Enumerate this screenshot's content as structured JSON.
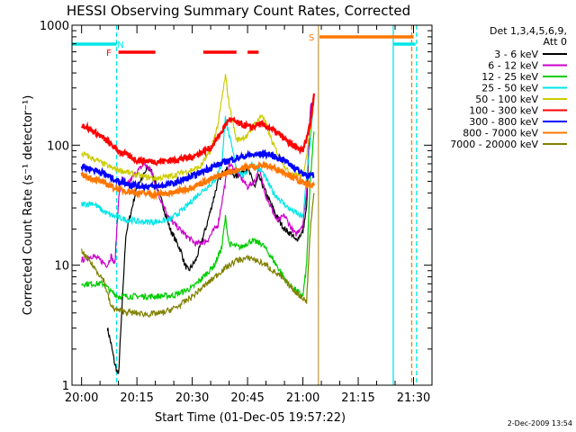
{
  "chart_data": {
    "type": "line",
    "title": "HESSI Observing Summary Count Rates, Corrected",
    "xlabel": "Start Time (01-Dec-05 19:57:22)",
    "ylabel": "Corrected Count Rate (s⁻¹ detector⁻¹)",
    "yscale": "log",
    "ylim": [
      1,
      1000
    ],
    "xlim": [
      "19:57:22",
      "21:35:00"
    ],
    "x_unit": "minutes",
    "x_tick_labels": [
      "20:00",
      "20:15",
      "20:30",
      "20:45",
      "21:00",
      "21:15",
      "21:30"
    ],
    "x_tick_values": [
      0,
      15,
      30,
      45,
      60,
      75,
      90
    ],
    "y_tick_labels": [
      "1",
      "10",
      "100",
      "1000"
    ],
    "y_tick_values": [
      1,
      10,
      100,
      1000
    ],
    "legend_title": [
      "Det 1,3,4,5,6,9,",
      "Att 0"
    ],
    "legend_position": "right, outside plot",
    "footer_date": "2-Dec-2009 13:54",
    "series": [
      {
        "name": "3 - 6 keV",
        "color": "#000000",
        "x": [
          7,
          8,
          9,
          10,
          12,
          15,
          18,
          19,
          21,
          24,
          27,
          28,
          29,
          31,
          34,
          37,
          39,
          40,
          42,
          45,
          47,
          48,
          50,
          53,
          55,
          57,
          58,
          60,
          61,
          62,
          63
        ],
        "y": [
          3,
          2.2,
          1.5,
          1.2,
          18,
          45,
          65,
          60,
          40,
          20,
          13,
          10,
          9,
          11,
          22,
          50,
          65,
          60,
          55,
          65,
          45,
          55,
          40,
          25,
          20,
          18,
          16,
          19,
          30,
          180,
          260
        ]
      },
      {
        "name": "6 - 12 keV",
        "color": "#cc00cc",
        "x": [
          0,
          3,
          5,
          7,
          8,
          9,
          10,
          11,
          12,
          14,
          17,
          19,
          21,
          24,
          28,
          31,
          34,
          37,
          39,
          40,
          42,
          45,
          47,
          48,
          50,
          53,
          55,
          57,
          58,
          60,
          61,
          62,
          63
        ],
        "y": [
          11,
          12,
          11,
          10,
          12,
          10,
          35,
          55,
          45,
          55,
          70,
          60,
          38,
          24,
          18,
          15,
          16,
          22,
          50,
          70,
          60,
          45,
          50,
          65,
          38,
          23,
          26,
          20,
          18,
          22,
          40,
          200,
          250
        ]
      },
      {
        "name": "12 - 25 keV",
        "color": "#00cc00",
        "x": [
          0,
          4,
          6,
          8,
          10,
          15,
          20,
          25,
          30,
          33,
          36,
          38,
          39,
          40,
          43,
          46,
          49,
          52,
          56,
          60,
          61,
          62,
          63
        ],
        "y": [
          7,
          7,
          7,
          6,
          5.5,
          5.5,
          5.5,
          5.6,
          6.5,
          8,
          10,
          14,
          25,
          15,
          14,
          16,
          15,
          11,
          7,
          5.5,
          10,
          50,
          130
        ]
      },
      {
        "name": "25 - 50 keV",
        "color": "#00e6e6",
        "x": [
          0,
          3,
          6,
          8,
          12,
          16,
          20,
          24,
          28,
          32,
          36,
          38,
          39,
          40,
          42,
          44,
          46,
          49,
          52,
          56,
          60,
          62,
          63
        ],
        "y": [
          32,
          33,
          28,
          26,
          24,
          23,
          23,
          24,
          30,
          40,
          50,
          70,
          170,
          120,
          65,
          55,
          70,
          60,
          40,
          30,
          25,
          110,
          230
        ]
      },
      {
        "name": "50 - 100 keV",
        "color": "#cccc00",
        "x": [
          0,
          4,
          8,
          12,
          16,
          20,
          24,
          28,
          32,
          35,
          37,
          39,
          40,
          42,
          45,
          47,
          49,
          52,
          56,
          60,
          62,
          63
        ],
        "y": [
          85,
          75,
          65,
          60,
          55,
          53,
          55,
          60,
          65,
          90,
          150,
          380,
          220,
          110,
          120,
          150,
          180,
          100,
          60,
          55,
          130,
          240
        ]
      },
      {
        "name": "100 - 300 keV",
        "color": "#ff0000",
        "x": [
          0,
          5,
          10,
          15,
          20,
          25,
          30,
          35,
          38,
          40,
          43,
          46,
          48,
          51,
          54,
          57,
          60,
          62,
          63
        ],
        "y": [
          150,
          120,
          90,
          75,
          73,
          75,
          80,
          95,
          130,
          165,
          150,
          140,
          150,
          140,
          120,
          100,
          90,
          150,
          270
        ]
      },
      {
        "name": "300 - 800 keV",
        "color": "#0000ff",
        "x": [
          0,
          5,
          10,
          15,
          20,
          25,
          30,
          35,
          40,
          45,
          50,
          55,
          60,
          63
        ],
        "y": [
          67,
          60,
          50,
          46,
          45,
          48,
          55,
          65,
          75,
          82,
          85,
          75,
          58,
          55
        ]
      },
      {
        "name": "800 - 7000 keV",
        "color": "#ff7700",
        "x": [
          0,
          5,
          10,
          15,
          20,
          25,
          30,
          35,
          40,
          45,
          50,
          55,
          60,
          63
        ],
        "y": [
          57,
          50,
          43,
          40,
          39,
          40,
          45,
          52,
          60,
          66,
          68,
          60,
          48,
          46
        ]
      },
      {
        "name": "7000 - 20000 keV",
        "color": "#808000",
        "x": [
          0,
          3,
          6,
          8,
          10,
          14,
          18,
          22,
          26,
          30,
          34,
          38,
          42,
          46,
          50,
          54,
          58,
          61,
          62,
          63
        ],
        "y": [
          13,
          10,
          7.5,
          4.5,
          4.2,
          4.0,
          3.9,
          4.0,
          4.5,
          5.5,
          7.0,
          9.0,
          11,
          11.5,
          10,
          8,
          6,
          5,
          20,
          40
        ]
      }
    ],
    "flags": {
      "saa_N": {
        "label": "N",
        "color": "#00e6e6",
        "segments": [
          [
            -3,
            9.5
          ],
          [
            84.5,
            90.5
          ]
        ]
      },
      "flare_F": {
        "label": "F",
        "color": "#ff0000",
        "segments": [
          [
            10,
            20
          ],
          [
            33,
            42
          ],
          [
            45,
            48
          ]
        ]
      },
      "saa_S": {
        "label": "S",
        "color": "#ff7700",
        "segments": [
          [
            64.5,
            90
          ]
        ]
      }
    },
    "vlines": [
      {
        "x": 9.5,
        "color": "#00e6e6",
        "dashed": true
      },
      {
        "x": 64.2,
        "color": "#c8a050",
        "dashed": false
      },
      {
        "x": 84.5,
        "color": "#00e6e6",
        "dashed": false
      },
      {
        "x": 89.5,
        "color": "#ff7700",
        "dashed": true
      },
      {
        "x": 90.8,
        "color": "#00e6e6",
        "dashed": true
      }
    ]
  }
}
